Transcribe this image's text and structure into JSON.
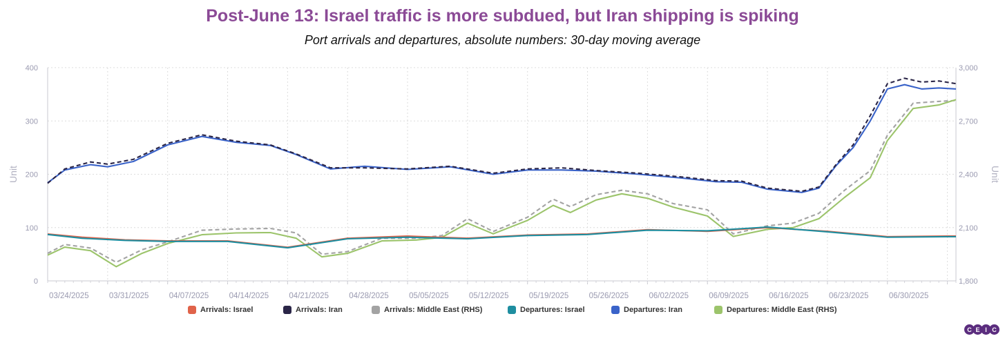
{
  "chart_data": {
    "type": "line",
    "title": "Post-June 13: Israel traffic is more subdued, but Iran shipping is spiking",
    "subtitle": "Port arrivals and departures, absolute numbers: 30-day moving average",
    "ylabel": "Unit",
    "y2label": "Unit",
    "ylim": [
      0,
      400
    ],
    "y2lim": [
      1800,
      3000
    ],
    "yticks": [
      "0",
      "100",
      "200",
      "300",
      "400"
    ],
    "y2ticks": [
      "1,800",
      "2,100",
      "2,400",
      "2,700",
      "3,000"
    ],
    "xlim": [
      "2025-03-17",
      "2025-07-01"
    ],
    "xticks": [
      "03/24/2025",
      "03/31/2025",
      "04/07/2025",
      "04/14/2025",
      "04/21/2025",
      "04/28/2025",
      "05/05/2025",
      "05/12/2025",
      "05/19/2025",
      "05/26/2025",
      "06/02/2025",
      "06/09/2025",
      "06/16/2025",
      "06/23/2025",
      "06/30/2025"
    ],
    "grid": true,
    "legend_position": "bottom",
    "title_color": "#8b4a96",
    "series": [
      {
        "name": "Arrivals: Israel",
        "color": "#e0634a",
        "axis": "left",
        "dash": false,
        "x": [
          "2025-03-17",
          "2025-03-21",
          "2025-03-26",
          "2025-03-31",
          "2025-04-07",
          "2025-04-14",
          "2025-04-21",
          "2025-04-28",
          "2025-05-05",
          "2025-05-12",
          "2025-05-19",
          "2025-05-26",
          "2025-06-02",
          "2025-06-09",
          "2025-06-16",
          "2025-06-23",
          "2025-06-30",
          "2025-07-01"
        ],
        "y": [
          88,
          82,
          77,
          75,
          75,
          63,
          80,
          84,
          80,
          86,
          88,
          96,
          93,
          100,
          93,
          83,
          84,
          84
        ]
      },
      {
        "name": "Arrivals: Iran",
        "color": "#2a2547",
        "axis": "left",
        "dash": true,
        "x": [
          "2025-03-17",
          "2025-03-19",
          "2025-03-22",
          "2025-03-24",
          "2025-03-27",
          "2025-03-31",
          "2025-04-04",
          "2025-04-08",
          "2025-04-12",
          "2025-04-15",
          "2025-04-19",
          "2025-04-23",
          "2025-04-28",
          "2025-05-03",
          "2025-05-08",
          "2025-05-12",
          "2025-05-16",
          "2025-05-20",
          "2025-05-25",
          "2025-05-30",
          "2025-06-03",
          "2025-06-06",
          "2025-06-09",
          "2025-06-13",
          "2025-06-15",
          "2025-06-17",
          "2025-06-19",
          "2025-06-21",
          "2025-06-23",
          "2025-06-25",
          "2025-06-27",
          "2025-06-29",
          "2025-07-01"
        ],
        "y": [
          183,
          210,
          223,
          219,
          228,
          258,
          274,
          262,
          255,
          238,
          212,
          212,
          210,
          215,
          202,
          210,
          212,
          207,
          202,
          195,
          188,
          187,
          174,
          168,
          176,
          218,
          255,
          310,
          370,
          380,
          373,
          375,
          370
        ]
      },
      {
        "name": "Arrivals: Middle East (RHS)",
        "color": "#a3a3a3",
        "axis": "right",
        "dash": true,
        "x": [
          "2025-03-17",
          "2025-03-19",
          "2025-03-22",
          "2025-03-25",
          "2025-03-28",
          "2025-03-31",
          "2025-04-04",
          "2025-04-08",
          "2025-04-12",
          "2025-04-15",
          "2025-04-18",
          "2025-04-21",
          "2025-04-25",
          "2025-04-29",
          "2025-05-02",
          "2025-05-05",
          "2025-05-08",
          "2025-05-12",
          "2025-05-15",
          "2025-05-17",
          "2025-05-20",
          "2025-05-23",
          "2025-05-26",
          "2025-05-29",
          "2025-06-02",
          "2025-06-05",
          "2025-06-09",
          "2025-06-12",
          "2025-06-15",
          "2025-06-18",
          "2025-06-21",
          "2025-06-23",
          "2025-06-26",
          "2025-06-29",
          "2025-07-01"
        ],
        "y": [
          1955,
          2005,
          1985,
          1905,
          1975,
          2020,
          2085,
          2092,
          2095,
          2070,
          1950,
          1965,
          2040,
          2040,
          2055,
          2150,
          2078,
          2158,
          2260,
          2218,
          2285,
          2310,
          2290,
          2235,
          2200,
          2065,
          2110,
          2125,
          2180,
          2310,
          2420,
          2620,
          2800,
          2810,
          2815
        ]
      },
      {
        "name": "Departures: Israel",
        "color": "#1e8ea0",
        "axis": "left",
        "dash": false,
        "x": [
          "2025-03-17",
          "2025-03-21",
          "2025-03-26",
          "2025-03-31",
          "2025-04-07",
          "2025-04-14",
          "2025-04-21",
          "2025-04-28",
          "2025-05-05",
          "2025-05-12",
          "2025-05-19",
          "2025-05-26",
          "2025-06-02",
          "2025-06-09",
          "2025-06-16",
          "2025-06-23",
          "2025-06-30",
          "2025-07-01"
        ],
        "y": [
          87,
          80,
          76,
          74,
          74,
          62,
          79,
          82,
          79,
          85,
          87,
          95,
          94,
          101,
          92,
          82,
          83,
          83
        ]
      },
      {
        "name": "Departures: Iran",
        "color": "#3a63c9",
        "axis": "left",
        "dash": false,
        "x": [
          "2025-03-17",
          "2025-03-19",
          "2025-03-22",
          "2025-03-24",
          "2025-03-27",
          "2025-03-31",
          "2025-04-04",
          "2025-04-08",
          "2025-04-12",
          "2025-04-15",
          "2025-04-19",
          "2025-04-23",
          "2025-04-28",
          "2025-05-03",
          "2025-05-08",
          "2025-05-12",
          "2025-05-16",
          "2025-05-20",
          "2025-05-25",
          "2025-05-30",
          "2025-06-03",
          "2025-06-06",
          "2025-06-09",
          "2025-06-13",
          "2025-06-15",
          "2025-06-17",
          "2025-06-19",
          "2025-06-21",
          "2025-06-23",
          "2025-06-25",
          "2025-06-27",
          "2025-06-29",
          "2025-07-01"
        ],
        "y": [
          184,
          208,
          218,
          214,
          224,
          255,
          271,
          260,
          254,
          237,
          210,
          215,
          209,
          214,
          200,
          208,
          208,
          206,
          200,
          193,
          186,
          185,
          172,
          166,
          174,
          216,
          250,
          300,
          360,
          368,
          360,
          362,
          360
        ]
      },
      {
        "name": "Departures: Middle East (RHS)",
        "color": "#9cc46b",
        "axis": "right",
        "dash": false,
        "x": [
          "2025-03-17",
          "2025-03-19",
          "2025-03-22",
          "2025-03-25",
          "2025-03-28",
          "2025-03-31",
          "2025-04-04",
          "2025-04-08",
          "2025-04-12",
          "2025-04-15",
          "2025-04-18",
          "2025-04-21",
          "2025-04-25",
          "2025-04-29",
          "2025-05-02",
          "2025-05-05",
          "2025-05-08",
          "2025-05-12",
          "2025-05-15",
          "2025-05-17",
          "2025-05-20",
          "2025-05-23",
          "2025-05-26",
          "2025-05-29",
          "2025-06-02",
          "2025-06-05",
          "2025-06-09",
          "2025-06-12",
          "2025-06-15",
          "2025-06-18",
          "2025-06-21",
          "2025-06-23",
          "2025-06-26",
          "2025-06-29",
          "2025-07-01"
        ],
        "y": [
          1945,
          1990,
          1970,
          1880,
          1955,
          2010,
          2060,
          2070,
          2072,
          2040,
          1935,
          1955,
          2025,
          2030,
          2045,
          2125,
          2065,
          2140,
          2225,
          2185,
          2255,
          2290,
          2265,
          2215,
          2165,
          2050,
          2090,
          2100,
          2150,
          2270,
          2380,
          2590,
          2770,
          2790,
          2820
        ]
      }
    ]
  },
  "legend": [
    {
      "label": "Arrivals: Israel",
      "color": "#e0634a"
    },
    {
      "label": "Arrivals: Iran",
      "color": "#2a2547"
    },
    {
      "label": "Arrivals: Middle East (RHS)",
      "color": "#a3a3a3"
    },
    {
      "label": "Departures: Israel",
      "color": "#1e8ea0"
    },
    {
      "label": "Departures: Iran",
      "color": "#3a63c9"
    },
    {
      "label": "Departures: Middle East (RHS)",
      "color": "#9cc46b"
    }
  ],
  "logo": {
    "letters": [
      "C",
      "E",
      "I",
      "C"
    ]
  }
}
